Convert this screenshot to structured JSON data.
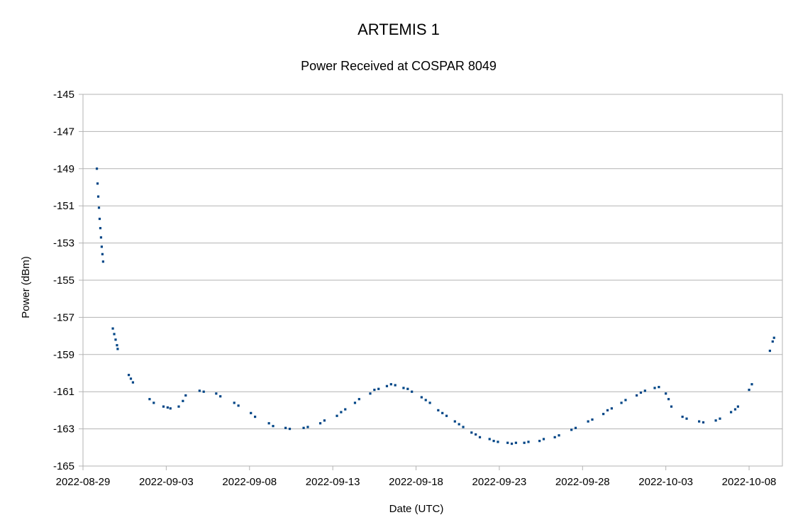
{
  "chart_data": {
    "type": "scatter",
    "title": "ARTEMIS 1",
    "subtitle": "Power Received at COSPAR 8049",
    "xlabel": "Date (UTC)",
    "ylabel": "Power (dBm)",
    "xlim": [
      "2022-08-29",
      "2022-10-10"
    ],
    "ylim": [
      -165,
      -145
    ],
    "x_ticks": [
      "2022-08-29",
      "2022-09-03",
      "2022-09-08",
      "2022-09-13",
      "2022-09-18",
      "2022-09-23",
      "2022-09-28",
      "2022-10-03",
      "2022-10-08"
    ],
    "y_ticks": [
      -145,
      -147,
      -149,
      -151,
      -153,
      -155,
      -157,
      -159,
      -161,
      -163,
      -165
    ],
    "grid": "horizontal",
    "legend": "none",
    "marker_color": "#004586",
    "series": [
      {
        "points": [
          [
            "2022-08-29 20:00",
            -149.0
          ],
          [
            "2022-08-29 21:00",
            -149.8
          ],
          [
            "2022-08-29 22:00",
            -150.5
          ],
          [
            "2022-08-29 23:00",
            -151.1
          ],
          [
            "2022-08-30 00:00",
            -151.7
          ],
          [
            "2022-08-30 01:00",
            -152.2
          ],
          [
            "2022-08-30 02:00",
            -152.7
          ],
          [
            "2022-08-30 03:00",
            -153.2
          ],
          [
            "2022-08-30 04:00",
            -153.6
          ],
          [
            "2022-08-30 05:00",
            -154.0
          ],
          [
            "2022-08-30 19:00",
            -157.6
          ],
          [
            "2022-08-30 21:00",
            -157.9
          ],
          [
            "2022-08-30 23:00",
            -158.2
          ],
          [
            "2022-08-31 01:00",
            -158.5
          ],
          [
            "2022-08-31 02:00",
            -158.7
          ],
          [
            "2022-08-31 18:00",
            -160.1
          ],
          [
            "2022-08-31 21:00",
            -160.3
          ],
          [
            "2022-09-01 00:00",
            -160.5
          ],
          [
            "2022-09-02 00:00",
            -161.4
          ],
          [
            "2022-09-02 06:00",
            -161.6
          ],
          [
            "2022-09-02 20:00",
            -161.8
          ],
          [
            "2022-09-03 02:00",
            -161.85
          ],
          [
            "2022-09-03 06:00",
            -161.9
          ],
          [
            "2022-09-03 18:00",
            -161.8
          ],
          [
            "2022-09-04 00:00",
            -161.5
          ],
          [
            "2022-09-04 04:00",
            -161.2
          ],
          [
            "2022-09-05 00:00",
            -160.95
          ],
          [
            "2022-09-05 06:00",
            -161.0
          ],
          [
            "2022-09-06 00:00",
            -161.1
          ],
          [
            "2022-09-06 06:00",
            -161.25
          ],
          [
            "2022-09-07 02:00",
            -161.6
          ],
          [
            "2022-09-07 08:00",
            -161.75
          ],
          [
            "2022-09-08 02:00",
            -162.15
          ],
          [
            "2022-09-08 08:00",
            -162.35
          ],
          [
            "2022-09-09 04:00",
            -162.7
          ],
          [
            "2022-09-09 10:00",
            -162.85
          ],
          [
            "2022-09-10 04:00",
            -162.95
          ],
          [
            "2022-09-10 10:00",
            -163.0
          ],
          [
            "2022-09-11 06:00",
            -162.95
          ],
          [
            "2022-09-11 12:00",
            -162.9
          ],
          [
            "2022-09-12 06:00",
            -162.7
          ],
          [
            "2022-09-12 12:00",
            -162.55
          ],
          [
            "2022-09-13 06:00",
            -162.3
          ],
          [
            "2022-09-13 12:00",
            -162.1
          ],
          [
            "2022-09-13 18:00",
            -161.95
          ],
          [
            "2022-09-14 08:00",
            -161.6
          ],
          [
            "2022-09-14 14:00",
            -161.4
          ],
          [
            "2022-09-15 06:00",
            -161.1
          ],
          [
            "2022-09-15 12:00",
            -160.9
          ],
          [
            "2022-09-15 18:00",
            -160.85
          ],
          [
            "2022-09-16 06:00",
            -160.7
          ],
          [
            "2022-09-16 12:00",
            -160.6
          ],
          [
            "2022-09-16 18:00",
            -160.65
          ],
          [
            "2022-09-17 06:00",
            -160.8
          ],
          [
            "2022-09-17 12:00",
            -160.85
          ],
          [
            "2022-09-17 18:00",
            -161.0
          ],
          [
            "2022-09-18 08:00",
            -161.3
          ],
          [
            "2022-09-18 14:00",
            -161.45
          ],
          [
            "2022-09-18 20:00",
            -161.6
          ],
          [
            "2022-09-19 08:00",
            -162.0
          ],
          [
            "2022-09-19 14:00",
            -162.15
          ],
          [
            "2022-09-19 20:00",
            -162.3
          ],
          [
            "2022-09-20 08:00",
            -162.6
          ],
          [
            "2022-09-20 14:00",
            -162.75
          ],
          [
            "2022-09-20 20:00",
            -162.9
          ],
          [
            "2022-09-21 08:00",
            -163.2
          ],
          [
            "2022-09-21 14:00",
            -163.3
          ],
          [
            "2022-09-21 20:00",
            -163.45
          ],
          [
            "2022-09-22 10:00",
            -163.55
          ],
          [
            "2022-09-22 16:00",
            -163.65
          ],
          [
            "2022-09-22 22:00",
            -163.7
          ],
          [
            "2022-09-23 12:00",
            -163.75
          ],
          [
            "2022-09-23 18:00",
            -163.8
          ],
          [
            "2022-09-24 00:00",
            -163.75
          ],
          [
            "2022-09-24 12:00",
            -163.75
          ],
          [
            "2022-09-24 18:00",
            -163.7
          ],
          [
            "2022-09-25 10:00",
            -163.65
          ],
          [
            "2022-09-25 16:00",
            -163.55
          ],
          [
            "2022-09-26 08:00",
            -163.45
          ],
          [
            "2022-09-26 14:00",
            -163.35
          ],
          [
            "2022-09-27 08:00",
            -163.05
          ],
          [
            "2022-09-27 14:00",
            -162.95
          ],
          [
            "2022-09-28 08:00",
            -162.6
          ],
          [
            "2022-09-28 14:00",
            -162.5
          ],
          [
            "2022-09-29 06:00",
            -162.2
          ],
          [
            "2022-09-29 12:00",
            -162.0
          ],
          [
            "2022-09-29 18:00",
            -161.9
          ],
          [
            "2022-09-30 08:00",
            -161.6
          ],
          [
            "2022-09-30 14:00",
            -161.45
          ],
          [
            "2022-10-01 06:00",
            -161.2
          ],
          [
            "2022-10-01 12:00",
            -161.05
          ],
          [
            "2022-10-01 18:00",
            -160.95
          ],
          [
            "2022-10-02 08:00",
            -160.8
          ],
          [
            "2022-10-02 14:00",
            -160.75
          ],
          [
            "2022-10-03 00:00",
            -161.1
          ],
          [
            "2022-10-03 04:00",
            -161.4
          ],
          [
            "2022-10-03 08:00",
            -161.8
          ],
          [
            "2022-10-04 00:00",
            -162.35
          ],
          [
            "2022-10-04 06:00",
            -162.45
          ],
          [
            "2022-10-05 00:00",
            -162.6
          ],
          [
            "2022-10-05 06:00",
            -162.65
          ],
          [
            "2022-10-06 00:00",
            -162.55
          ],
          [
            "2022-10-06 06:00",
            -162.45
          ],
          [
            "2022-10-06 22:00",
            -162.1
          ],
          [
            "2022-10-07 04:00",
            -161.95
          ],
          [
            "2022-10-07 08:00",
            -161.8
          ],
          [
            "2022-10-08 00:00",
            -160.9
          ],
          [
            "2022-10-08 04:00",
            -160.6
          ],
          [
            "2022-10-09 06:00",
            -158.8
          ],
          [
            "2022-10-09 10:00",
            -158.3
          ],
          [
            "2022-10-09 12:00",
            -158.1
          ]
        ]
      }
    ]
  }
}
